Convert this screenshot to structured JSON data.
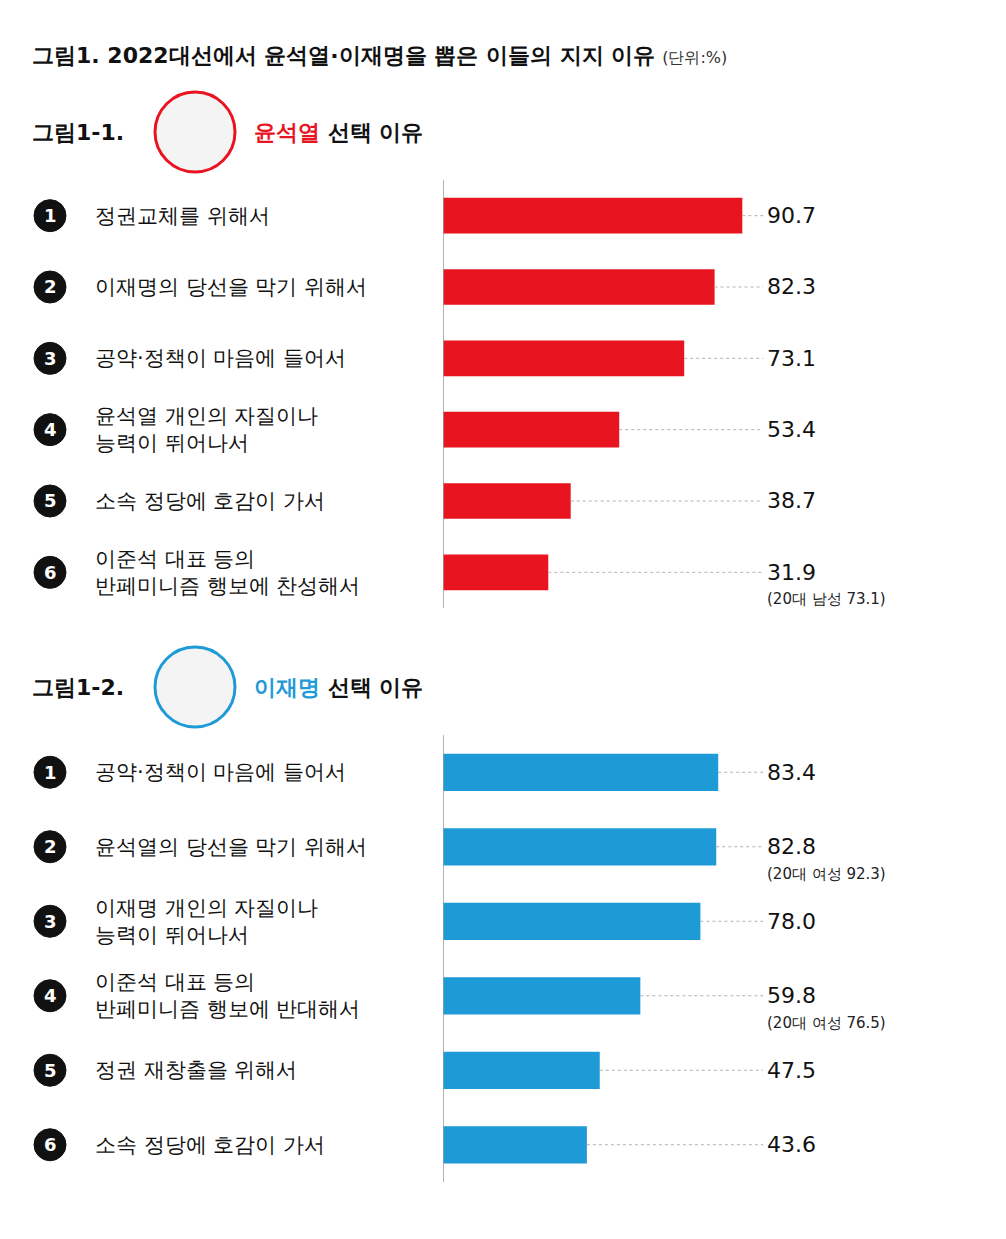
{
  "title": "그림1. 2022대선에서 윤석열·이재명을 뽑은 이들의 지지 이유",
  "unit": "(단위:%)",
  "chart_data": [
    {
      "type": "bar",
      "orientation": "horizontal",
      "title": "그림1-1. 윤석열 선택 이유",
      "item_numbers": [
        1,
        2,
        3,
        4,
        5,
        6
      ],
      "categories": [
        "정권교체를 위해서",
        "이재명의 당선을 막기 위해서",
        "공약·정책이 마음에 들어서",
        "윤석열 개인의 자질이나\n능력이 뛰어나서",
        "소속 정당에 호감이 가서",
        "이준석 대표 등의\n반페미니즘 행보에 찬성해서"
      ],
      "values": [
        90.7,
        82.3,
        73.1,
        53.4,
        38.7,
        31.9
      ],
      "notes": [
        null,
        null,
        null,
        null,
        null,
        "(20대 남성 73.1)"
      ],
      "color": "#e8141f",
      "xlim": [
        0,
        100
      ],
      "data_labels": true,
      "tick_labels": false,
      "grid": false
    },
    {
      "type": "bar",
      "orientation": "horizontal",
      "title": "그림1-2. 이재명 선택 이유",
      "item_numbers": [
        1,
        2,
        3,
        4,
        5,
        6
      ],
      "categories": [
        "공약·정책이 마음에 들어서",
        "윤석열의 당선을 막기 위해서",
        "이재명 개인의 자질이나\n능력이 뛰어나서",
        "이준석 대표 등의\n반페미니즘 행보에 반대해서",
        "정권 재창출을 위해서",
        "소속 정당에 호감이 가서"
      ],
      "values": [
        83.4,
        82.8,
        78.0,
        59.8,
        47.5,
        43.6
      ],
      "value_labels": [
        "83.4",
        "82.8",
        "78.0",
        "59.8",
        "47.5",
        "43.6"
      ],
      "notes": [
        null,
        "(20대 여성 92.3)",
        null,
        "(20대 여성 76.5)",
        null,
        null
      ],
      "color": "#1e9ad6",
      "xlim": [
        0,
        100
      ],
      "data_labels": true,
      "tick_labels": false,
      "grid": false
    }
  ]
}
